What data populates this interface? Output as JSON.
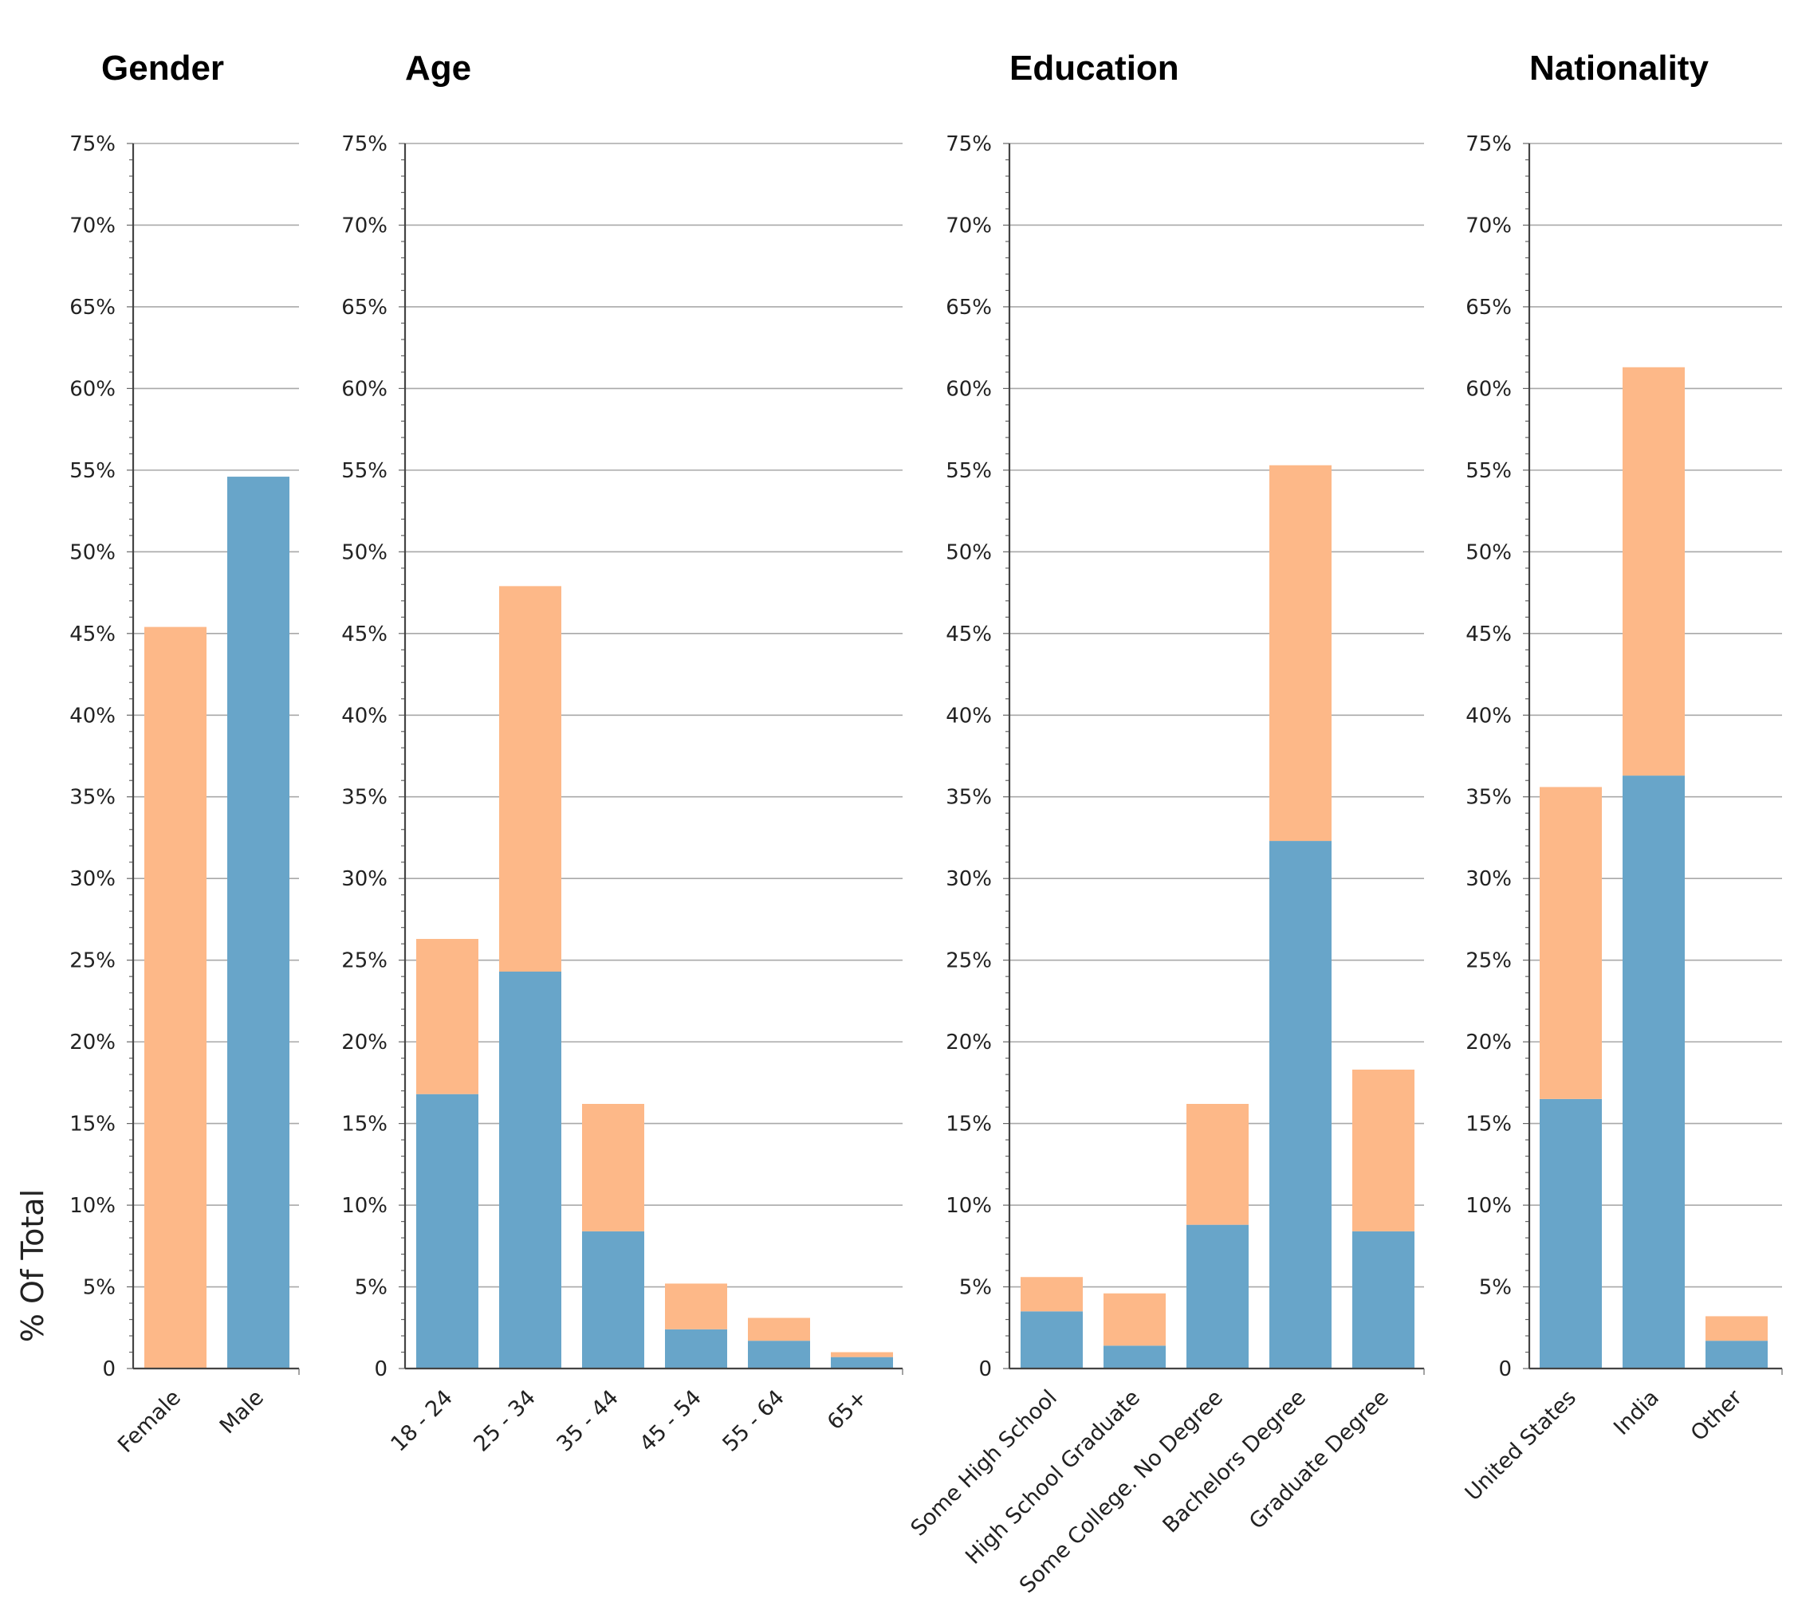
{
  "y_axis_title": "% Of Total",
  "colors": {
    "top": "#fdb888",
    "bottom": "#68a5c9"
  },
  "chart_data": [
    {
      "type": "bar",
      "title": "Gender",
      "stacked": true,
      "ylim": [
        0,
        75
      ],
      "yticks": [
        "0",
        "5%",
        "10%",
        "15%",
        "20%",
        "25%",
        "30%",
        "35%",
        "40%",
        "45%",
        "50%",
        "55%",
        "60%",
        "65%",
        "70%",
        "75%"
      ],
      "categories": [
        "Female",
        "Male"
      ],
      "series": [
        {
          "values": [
            0,
            54.6
          ]
        },
        {
          "values": [
            45.4,
            0
          ]
        }
      ]
    },
    {
      "type": "bar",
      "title": "Age",
      "stacked": true,
      "ylim": [
        0,
        75
      ],
      "yticks": [
        "0",
        "5%",
        "10%",
        "15%",
        "20%",
        "25%",
        "30%",
        "35%",
        "40%",
        "45%",
        "50%",
        "55%",
        "60%",
        "65%",
        "70%",
        "75%"
      ],
      "categories": [
        "18 - 24",
        "25 - 34",
        "35 - 44",
        "45 - 54",
        "55 - 64",
        "65+"
      ],
      "series": [
        {
          "values": [
            16.8,
            24.3,
            8.4,
            2.4,
            1.7,
            0.7
          ]
        },
        {
          "values": [
            9.5,
            23.6,
            7.8,
            2.8,
            1.4,
            0.3
          ]
        }
      ]
    },
    {
      "type": "bar",
      "title": "Education",
      "stacked": true,
      "ylim": [
        0,
        75
      ],
      "yticks": [
        "0",
        "5%",
        "10%",
        "15%",
        "20%",
        "25%",
        "30%",
        "35%",
        "40%",
        "45%",
        "50%",
        "55%",
        "60%",
        "65%",
        "70%",
        "75%"
      ],
      "categories": [
        "Some High School",
        "High School Graduate",
        "Some College. No Degree",
        "Bachelors Degree",
        "Graduate Degree"
      ],
      "series": [
        {
          "values": [
            3.5,
            1.4,
            8.8,
            32.3,
            8.4
          ]
        },
        {
          "values": [
            2.1,
            3.2,
            7.4,
            23.0,
            9.9
          ]
        }
      ]
    },
    {
      "type": "bar",
      "title": "Nationality",
      "stacked": true,
      "ylim": [
        0,
        75
      ],
      "yticks": [
        "0",
        "5%",
        "10%",
        "15%",
        "20%",
        "25%",
        "30%",
        "35%",
        "40%",
        "45%",
        "50%",
        "55%",
        "60%",
        "65%",
        "70%",
        "75%"
      ],
      "categories": [
        "United States",
        "India",
        "Other"
      ],
      "series": [
        {
          "values": [
            16.5,
            36.3,
            1.7
          ]
        },
        {
          "values": [
            19.1,
            25.0,
            1.5
          ]
        }
      ]
    }
  ]
}
